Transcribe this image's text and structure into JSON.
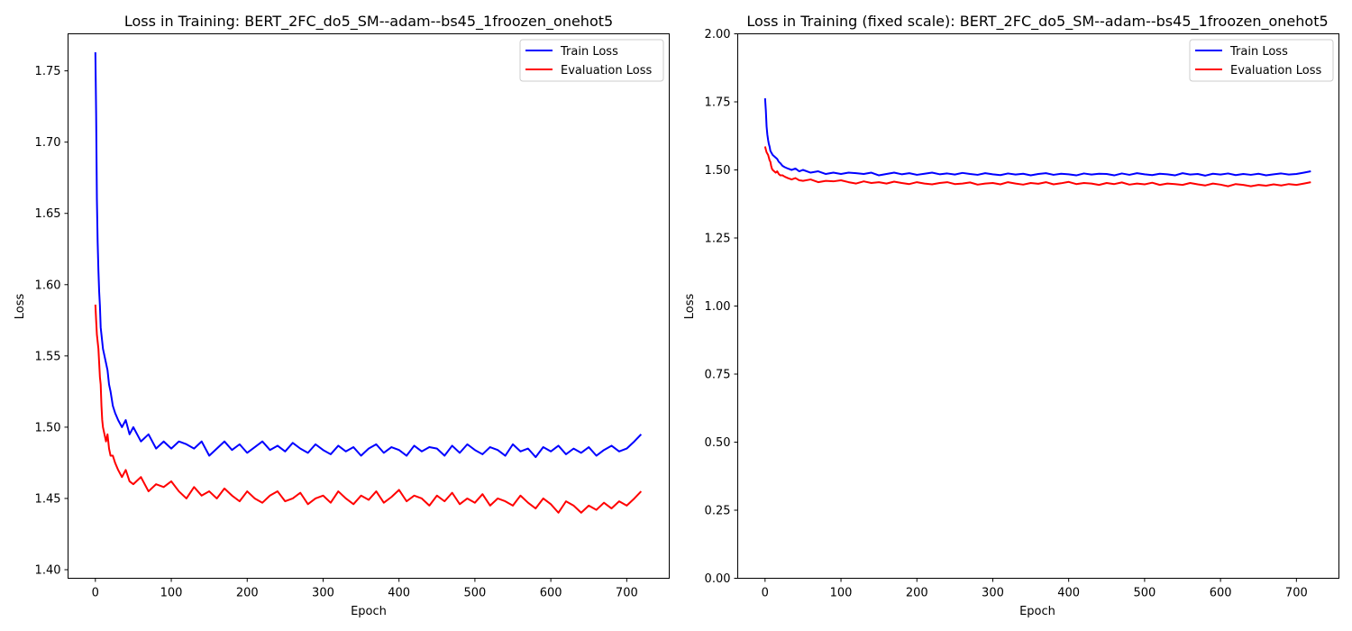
{
  "chart_data": [
    {
      "type": "line",
      "title": "Loss in Training: BERT_2FC_do5_SM--adam--bs45_1froozen_onehot5",
      "xlabel": "Epoch",
      "ylabel": "Loss",
      "xlim": [
        -36,
        756
      ],
      "ylim": [
        1.394,
        1.776
      ],
      "xticks": [
        0,
        100,
        200,
        300,
        400,
        500,
        600,
        700
      ],
      "xtick_labels": [
        "0",
        "100",
        "200",
        "300",
        "400",
        "500",
        "600",
        "700"
      ],
      "yticks": [
        1.4,
        1.45,
        1.5,
        1.55,
        1.6,
        1.65,
        1.7,
        1.75
      ],
      "ytick_labels": [
        "1.40",
        "1.45",
        "1.50",
        "1.55",
        "1.60",
        "1.65",
        "1.70",
        "1.75"
      ],
      "grid": false,
      "legend": "top-right",
      "series": [
        {
          "name": "Train Loss",
          "color": "#0000ff",
          "x": [
            0,
            1,
            2,
            3,
            4,
            5,
            6,
            7,
            8,
            9,
            10,
            12,
            14,
            16,
            18,
            20,
            23,
            26,
            30,
            35,
            40,
            45,
            50,
            60,
            70,
            80,
            90,
            100,
            110,
            120,
            130,
            140,
            150,
            160,
            170,
            180,
            190,
            200,
            210,
            220,
            230,
            240,
            250,
            260,
            270,
            280,
            290,
            300,
            310,
            320,
            330,
            340,
            350,
            360,
            370,
            380,
            390,
            400,
            410,
            420,
            430,
            440,
            450,
            460,
            470,
            480,
            490,
            500,
            510,
            520,
            530,
            540,
            550,
            560,
            570,
            580,
            590,
            600,
            610,
            620,
            630,
            640,
            650,
            660,
            670,
            680,
            690,
            700,
            710,
            719
          ],
          "values": [
            1.763,
            1.72,
            1.66,
            1.63,
            1.61,
            1.595,
            1.585,
            1.57,
            1.565,
            1.56,
            1.555,
            1.55,
            1.545,
            1.54,
            1.53,
            1.525,
            1.515,
            1.51,
            1.505,
            1.5,
            1.505,
            1.495,
            1.5,
            1.49,
            1.495,
            1.485,
            1.49,
            1.485,
            1.49,
            1.488,
            1.485,
            1.49,
            1.48,
            1.485,
            1.49,
            1.484,
            1.488,
            1.482,
            1.486,
            1.49,
            1.484,
            1.487,
            1.483,
            1.489,
            1.485,
            1.482,
            1.488,
            1.484,
            1.481,
            1.487,
            1.483,
            1.486,
            1.48,
            1.485,
            1.488,
            1.482,
            1.486,
            1.484,
            1.48,
            1.487,
            1.483,
            1.486,
            1.485,
            1.48,
            1.487,
            1.482,
            1.488,
            1.484,
            1.481,
            1.486,
            1.484,
            1.48,
            1.488,
            1.483,
            1.485,
            1.479,
            1.486,
            1.483,
            1.487,
            1.481,
            1.485,
            1.482,
            1.486,
            1.48,
            1.484,
            1.487,
            1.483,
            1.485,
            1.49,
            1.495
          ]
        },
        {
          "name": "Evaluation Loss",
          "color": "#ff0000",
          "x": [
            0,
            1,
            2,
            3,
            4,
            5,
            6,
            7,
            8,
            9,
            10,
            12,
            14,
            16,
            18,
            20,
            23,
            26,
            30,
            35,
            40,
            45,
            50,
            60,
            70,
            80,
            90,
            100,
            110,
            120,
            130,
            140,
            150,
            160,
            170,
            180,
            190,
            200,
            210,
            220,
            230,
            240,
            250,
            260,
            270,
            280,
            290,
            300,
            310,
            320,
            330,
            340,
            350,
            360,
            370,
            380,
            390,
            400,
            410,
            420,
            430,
            440,
            450,
            460,
            470,
            480,
            490,
            500,
            510,
            520,
            530,
            540,
            550,
            560,
            570,
            580,
            590,
            600,
            610,
            620,
            630,
            640,
            650,
            660,
            670,
            680,
            690,
            700,
            710,
            719
          ],
          "values": [
            1.586,
            1.575,
            1.565,
            1.56,
            1.555,
            1.545,
            1.535,
            1.53,
            1.515,
            1.505,
            1.5,
            1.495,
            1.49,
            1.495,
            1.485,
            1.48,
            1.48,
            1.475,
            1.47,
            1.465,
            1.47,
            1.462,
            1.46,
            1.465,
            1.455,
            1.46,
            1.458,
            1.462,
            1.455,
            1.45,
            1.458,
            1.452,
            1.455,
            1.45,
            1.457,
            1.452,
            1.448,
            1.455,
            1.45,
            1.447,
            1.452,
            1.455,
            1.448,
            1.45,
            1.454,
            1.446,
            1.45,
            1.452,
            1.447,
            1.455,
            1.45,
            1.446,
            1.452,
            1.449,
            1.455,
            1.447,
            1.451,
            1.456,
            1.448,
            1.452,
            1.45,
            1.445,
            1.452,
            1.448,
            1.454,
            1.446,
            1.45,
            1.447,
            1.453,
            1.445,
            1.45,
            1.448,
            1.445,
            1.452,
            1.447,
            1.443,
            1.45,
            1.446,
            1.44,
            1.448,
            1.445,
            1.44,
            1.445,
            1.442,
            1.447,
            1.443,
            1.448,
            1.445,
            1.45,
            1.455
          ]
        }
      ]
    },
    {
      "type": "line",
      "title": "Loss in Training (fixed scale): BERT_2FC_do5_SM--adam--bs45_1froozen_onehot5",
      "xlabel": "Epoch",
      "ylabel": "Loss",
      "xlim": [
        -36,
        756
      ],
      "ylim": [
        0.0,
        2.0
      ],
      "xticks": [
        0,
        100,
        200,
        300,
        400,
        500,
        600,
        700
      ],
      "xtick_labels": [
        "0",
        "100",
        "200",
        "300",
        "400",
        "500",
        "600",
        "700"
      ],
      "yticks": [
        0.0,
        0.25,
        0.5,
        0.75,
        1.0,
        1.25,
        1.5,
        1.75,
        2.0
      ],
      "ytick_labels": [
        "0.00",
        "0.25",
        "0.50",
        "0.75",
        "1.00",
        "1.25",
        "1.50",
        "1.75",
        "2.00"
      ],
      "grid": false,
      "legend": "top-right",
      "series": [
        {
          "name": "Train Loss",
          "color": "#0000ff",
          "x": [
            0,
            1,
            2,
            3,
            4,
            5,
            6,
            7,
            8,
            9,
            10,
            12,
            14,
            16,
            18,
            20,
            23,
            26,
            30,
            35,
            40,
            45,
            50,
            60,
            70,
            80,
            90,
            100,
            110,
            120,
            130,
            140,
            150,
            160,
            170,
            180,
            190,
            200,
            210,
            220,
            230,
            240,
            250,
            260,
            270,
            280,
            290,
            300,
            310,
            320,
            330,
            340,
            350,
            360,
            370,
            380,
            390,
            400,
            410,
            420,
            430,
            440,
            450,
            460,
            470,
            480,
            490,
            500,
            510,
            520,
            530,
            540,
            550,
            560,
            570,
            580,
            590,
            600,
            610,
            620,
            630,
            640,
            650,
            660,
            670,
            680,
            690,
            700,
            710,
            719
          ],
          "values": [
            1.763,
            1.72,
            1.66,
            1.63,
            1.61,
            1.595,
            1.585,
            1.57,
            1.565,
            1.56,
            1.555,
            1.55,
            1.545,
            1.54,
            1.53,
            1.525,
            1.515,
            1.51,
            1.505,
            1.5,
            1.505,
            1.495,
            1.5,
            1.49,
            1.495,
            1.485,
            1.49,
            1.485,
            1.49,
            1.488,
            1.485,
            1.49,
            1.48,
            1.485,
            1.49,
            1.484,
            1.488,
            1.482,
            1.486,
            1.49,
            1.484,
            1.487,
            1.483,
            1.489,
            1.485,
            1.482,
            1.488,
            1.484,
            1.481,
            1.487,
            1.483,
            1.486,
            1.48,
            1.485,
            1.488,
            1.482,
            1.486,
            1.484,
            1.48,
            1.487,
            1.483,
            1.486,
            1.485,
            1.48,
            1.487,
            1.482,
            1.488,
            1.484,
            1.481,
            1.486,
            1.484,
            1.48,
            1.488,
            1.483,
            1.485,
            1.479,
            1.486,
            1.483,
            1.487,
            1.481,
            1.485,
            1.482,
            1.486,
            1.48,
            1.484,
            1.487,
            1.483,
            1.485,
            1.49,
            1.495
          ]
        },
        {
          "name": "Evaluation Loss",
          "color": "#ff0000",
          "x": [
            0,
            1,
            2,
            3,
            4,
            5,
            6,
            7,
            8,
            9,
            10,
            12,
            14,
            16,
            18,
            20,
            23,
            26,
            30,
            35,
            40,
            45,
            50,
            60,
            70,
            80,
            90,
            100,
            110,
            120,
            130,
            140,
            150,
            160,
            170,
            180,
            190,
            200,
            210,
            220,
            230,
            240,
            250,
            260,
            270,
            280,
            290,
            300,
            310,
            320,
            330,
            340,
            350,
            360,
            370,
            380,
            390,
            400,
            410,
            420,
            430,
            440,
            450,
            460,
            470,
            480,
            490,
            500,
            510,
            520,
            530,
            540,
            550,
            560,
            570,
            580,
            590,
            600,
            610,
            620,
            630,
            640,
            650,
            660,
            670,
            680,
            690,
            700,
            710,
            719
          ],
          "values": [
            1.586,
            1.575,
            1.565,
            1.56,
            1.555,
            1.545,
            1.535,
            1.53,
            1.515,
            1.505,
            1.5,
            1.495,
            1.49,
            1.495,
            1.485,
            1.48,
            1.48,
            1.475,
            1.47,
            1.465,
            1.47,
            1.462,
            1.46,
            1.465,
            1.455,
            1.46,
            1.458,
            1.462,
            1.455,
            1.45,
            1.458,
            1.452,
            1.455,
            1.45,
            1.457,
            1.452,
            1.448,
            1.455,
            1.45,
            1.447,
            1.452,
            1.455,
            1.448,
            1.45,
            1.454,
            1.446,
            1.45,
            1.452,
            1.447,
            1.455,
            1.45,
            1.446,
            1.452,
            1.449,
            1.455,
            1.447,
            1.451,
            1.456,
            1.448,
            1.452,
            1.45,
            1.445,
            1.452,
            1.448,
            1.454,
            1.446,
            1.45,
            1.447,
            1.453,
            1.445,
            1.45,
            1.448,
            1.445,
            1.452,
            1.447,
            1.443,
            1.45,
            1.446,
            1.44,
            1.448,
            1.445,
            1.44,
            1.445,
            1.442,
            1.447,
            1.443,
            1.448,
            1.445,
            1.45,
            1.455
          ]
        }
      ]
    }
  ]
}
